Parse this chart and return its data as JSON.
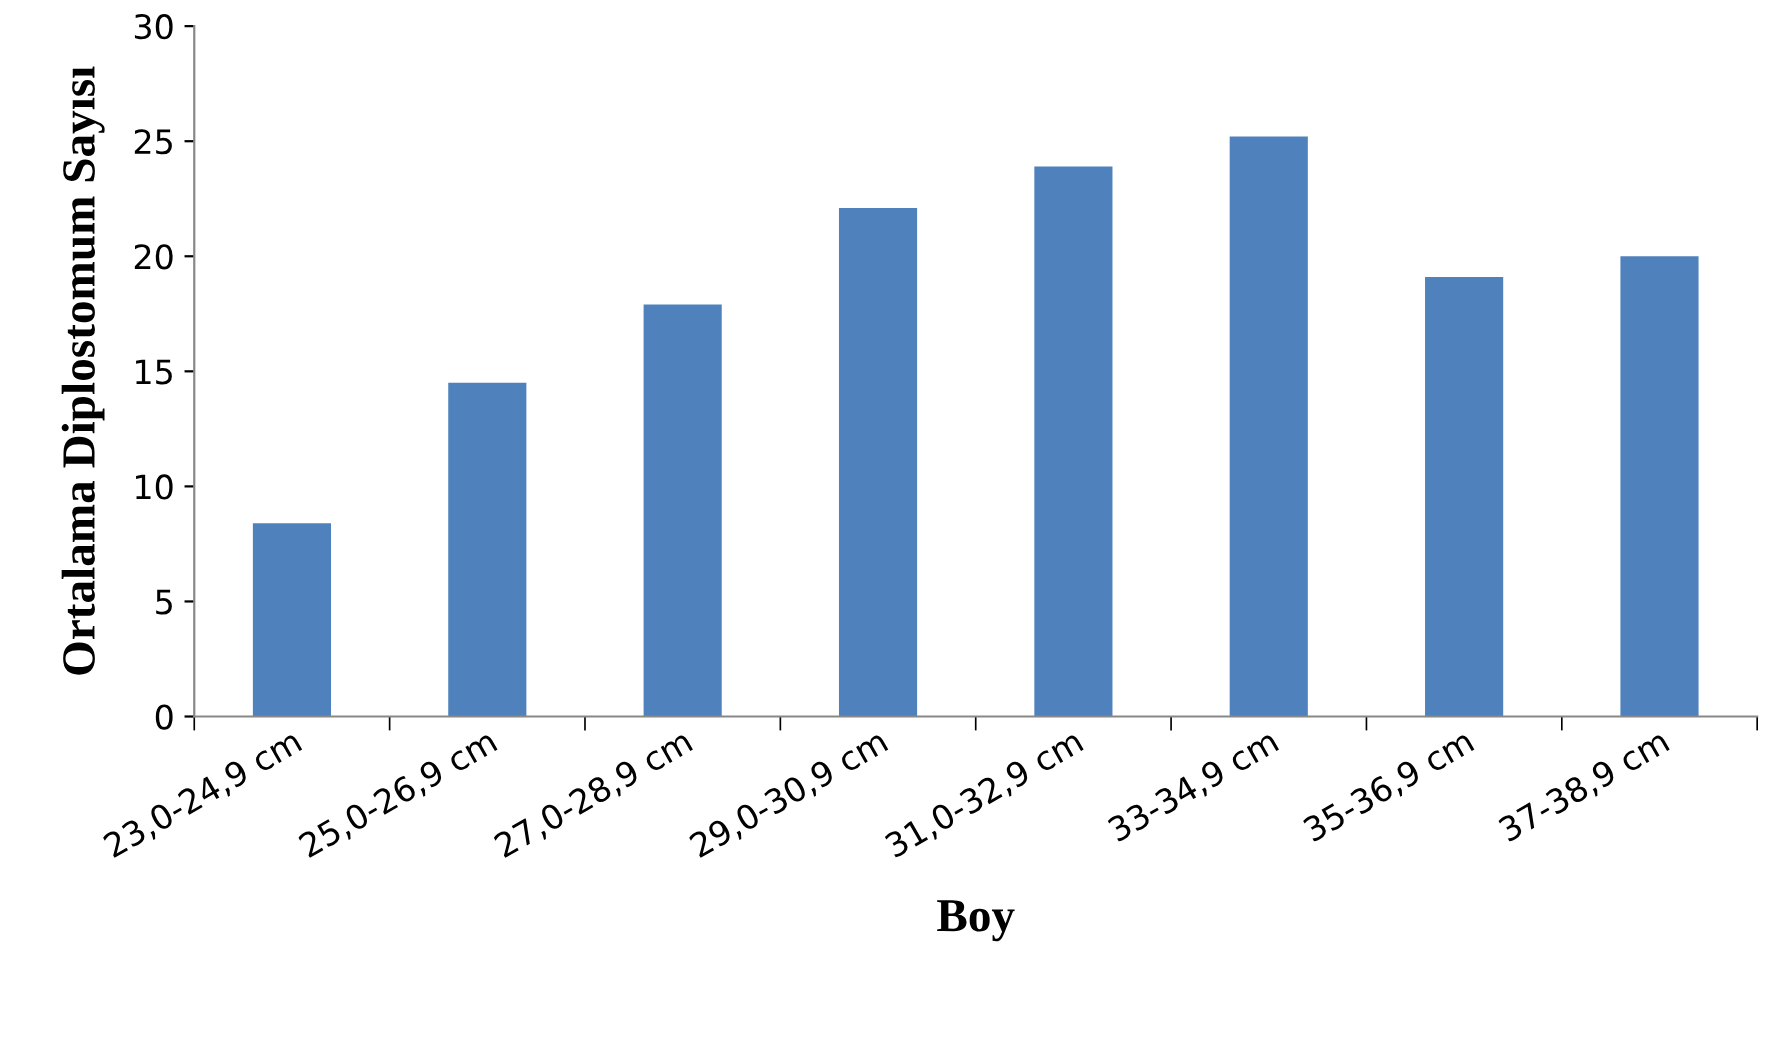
{
  "chart_data": {
    "type": "bar",
    "categories": [
      "23,0-24,9 cm",
      "25,0-26,9 cm",
      "27,0-28,9 cm",
      "29,0-30,9 cm",
      "31,0-32,9 cm",
      "33-34,9 cm",
      "35-36,9 cm",
      "37-38,9 cm"
    ],
    "values": [
      8.4,
      14.5,
      17.9,
      22.1,
      23.9,
      25.2,
      19.1,
      20.0
    ],
    "color": "#4f81bd",
    "xlabel": "Boy",
    "ylabel": "Ortalama Diplostomum Sayısı",
    "ylim": [
      0,
      30
    ],
    "yticks": [
      0,
      5,
      10,
      15,
      20,
      25,
      30
    ],
    "grid": false,
    "legend": false
  }
}
